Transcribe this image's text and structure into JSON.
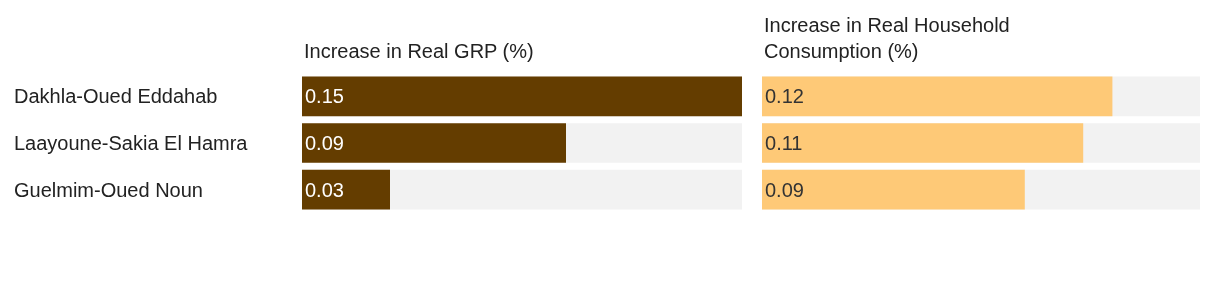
{
  "chart_data": [
    {
      "type": "bar",
      "orientation": "horizontal",
      "title": "Increase in Real GRP (%)",
      "categories": [
        "Dakhla-Oued Eddahab",
        "Laayoune-Sakia El Hamra",
        "Guelmim-Oued Noun"
      ],
      "values": [
        0.15,
        0.09,
        0.03
      ],
      "color": "#643d00",
      "xlim": [
        0,
        0.15
      ],
      "data_labels": true,
      "tick_labels": "y",
      "grid": false,
      "legend": false,
      "bands": [
        {
          "axis": "x",
          "from": 0,
          "to": 0.15,
          "color": "#f2f2f2"
        }
      ]
    },
    {
      "type": "bar",
      "orientation": "horizontal",
      "title": "Increase in Real Household Consumption (%)",
      "categories": [
        null,
        null,
        null
      ],
      "values": [
        0.12,
        0.11,
        0.09
      ],
      "color": "#fec977",
      "xlim": [
        0,
        0.15
      ],
      "data_labels": true,
      "tick_labels": false,
      "grid": false,
      "legend": false,
      "bands": [
        {
          "axis": "x",
          "from": 0,
          "to": 0.15,
          "color": "#f2f2f2"
        }
      ]
    }
  ]
}
